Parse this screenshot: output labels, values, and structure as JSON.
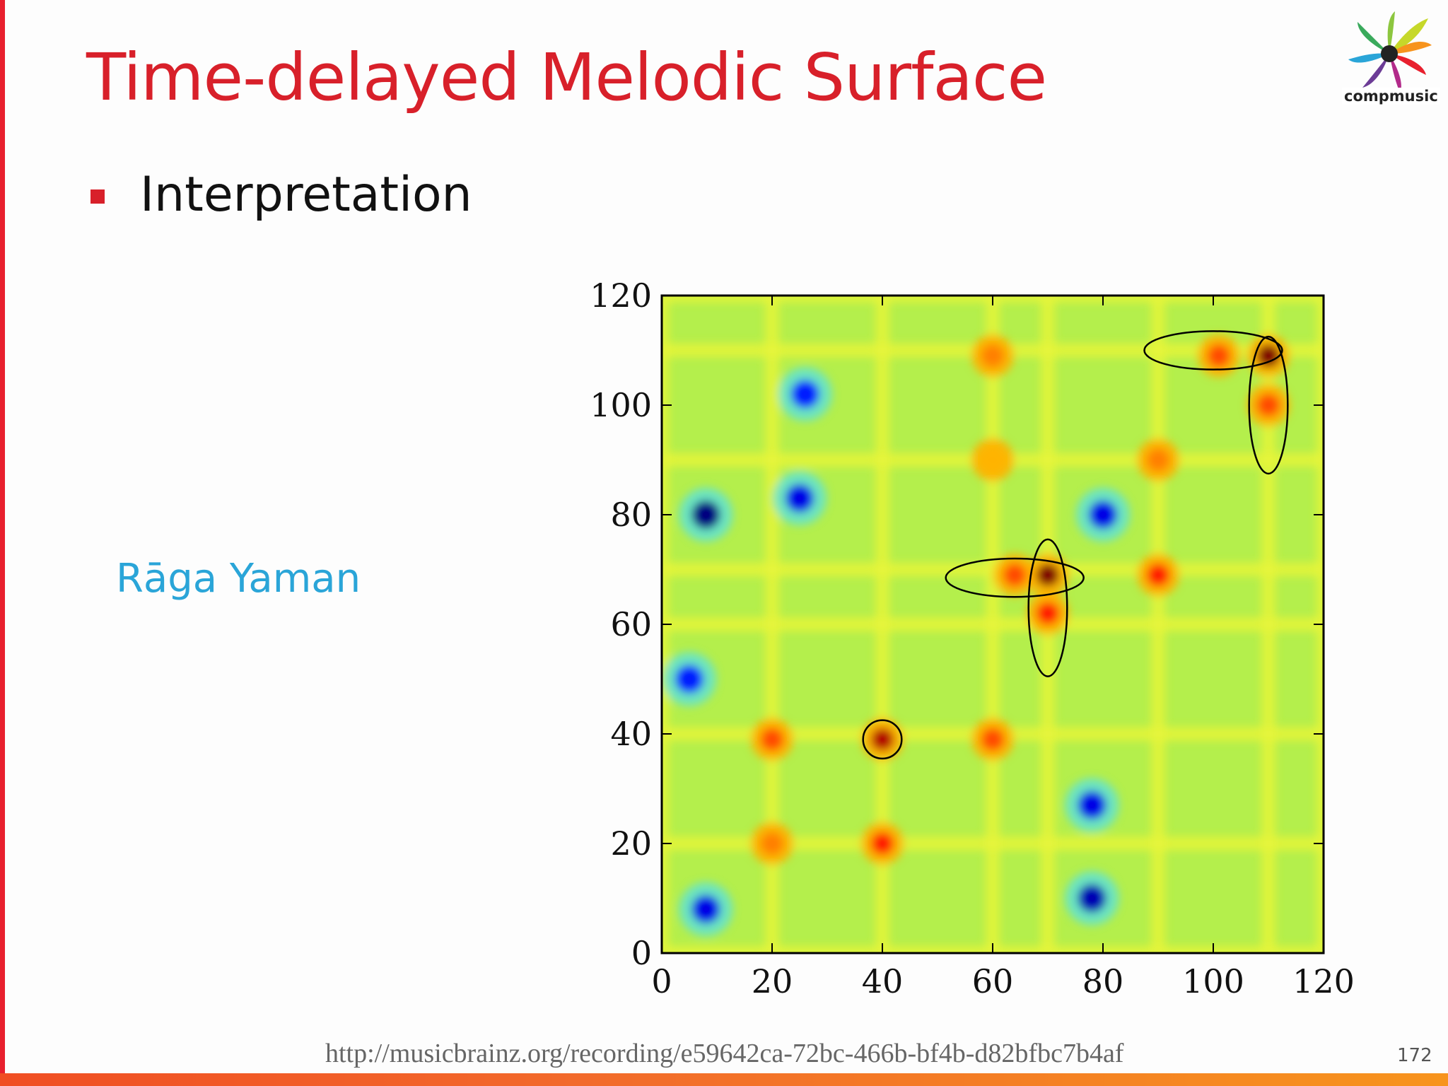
{
  "slide": {
    "title": "Time-delayed Melodic Surface",
    "bullet": "Interpretation",
    "raga_label": "Rāga Yaman",
    "logo_text": "compmusic",
    "source_url": "http://musicbrainz.org/recording/e59642ca-72bc-466b-bf4b-d82bfbc7b4af",
    "page_number": "172"
  },
  "colors": {
    "title": "#d8202a",
    "raga_label": "#2aa5d8",
    "accent_bar": "#e8202e"
  },
  "chart_data": {
    "type": "heatmap",
    "title": "",
    "xlabel": "",
    "ylabel": "",
    "xlim": [
      0,
      120
    ],
    "ylim": [
      120,
      0
    ],
    "x_ticks": [
      "0",
      "20",
      "40",
      "60",
      "80",
      "100",
      "120"
    ],
    "y_ticks": [
      "0",
      "20",
      "40",
      "60",
      "80",
      "100",
      "120"
    ],
    "colormap": "jet",
    "hot_spots": [
      {
        "x": 40,
        "y": 39,
        "value": 0.95
      },
      {
        "x": 70,
        "y": 69,
        "value": 1.0
      },
      {
        "x": 70,
        "y": 62,
        "value": 0.85
      },
      {
        "x": 64,
        "y": 69,
        "value": 0.8
      },
      {
        "x": 110,
        "y": 109,
        "value": 1.0
      },
      {
        "x": 110,
        "y": 100,
        "value": 0.8
      },
      {
        "x": 101,
        "y": 109,
        "value": 0.8
      },
      {
        "x": 20,
        "y": 39,
        "value": 0.8
      },
      {
        "x": 60,
        "y": 39,
        "value": 0.8
      },
      {
        "x": 40,
        "y": 20,
        "value": 0.85
      },
      {
        "x": 20,
        "y": 20,
        "value": 0.75
      },
      {
        "x": 90,
        "y": 69,
        "value": 0.85
      },
      {
        "x": 60,
        "y": 109,
        "value": 0.75
      },
      {
        "x": 90,
        "y": 90,
        "value": 0.75
      },
      {
        "x": 60,
        "y": 90,
        "value": 0.7
      }
    ],
    "cold_spots": [
      {
        "x": 8,
        "y": 80,
        "value": 0.0
      },
      {
        "x": 78,
        "y": 10,
        "value": 0.05
      },
      {
        "x": 80,
        "y": 80,
        "value": 0.1
      },
      {
        "x": 8,
        "y": 8,
        "value": 0.1
      },
      {
        "x": 78,
        "y": 27,
        "value": 0.1
      },
      {
        "x": 25,
        "y": 83,
        "value": 0.1
      },
      {
        "x": 5,
        "y": 50,
        "value": 0.15
      },
      {
        "x": 26,
        "y": 102,
        "value": 0.15
      }
    ],
    "annotations": [
      {
        "shape": "circle",
        "cx": 40,
        "cy": 39,
        "rx": 3.5,
        "ry": 3.5
      },
      {
        "shape": "ellipse",
        "cx": 70,
        "cy": 63,
        "rx": 3.5,
        "ry": 12.5
      },
      {
        "shape": "ellipse",
        "cx": 64,
        "cy": 68.5,
        "rx": 12.5,
        "ry": 3.5
      },
      {
        "shape": "ellipse",
        "cx": 110,
        "cy": 100,
        "rx": 3.5,
        "ry": 12.5
      },
      {
        "shape": "ellipse",
        "cx": 100,
        "cy": 110,
        "rx": 12.5,
        "ry": 3.5
      }
    ]
  }
}
